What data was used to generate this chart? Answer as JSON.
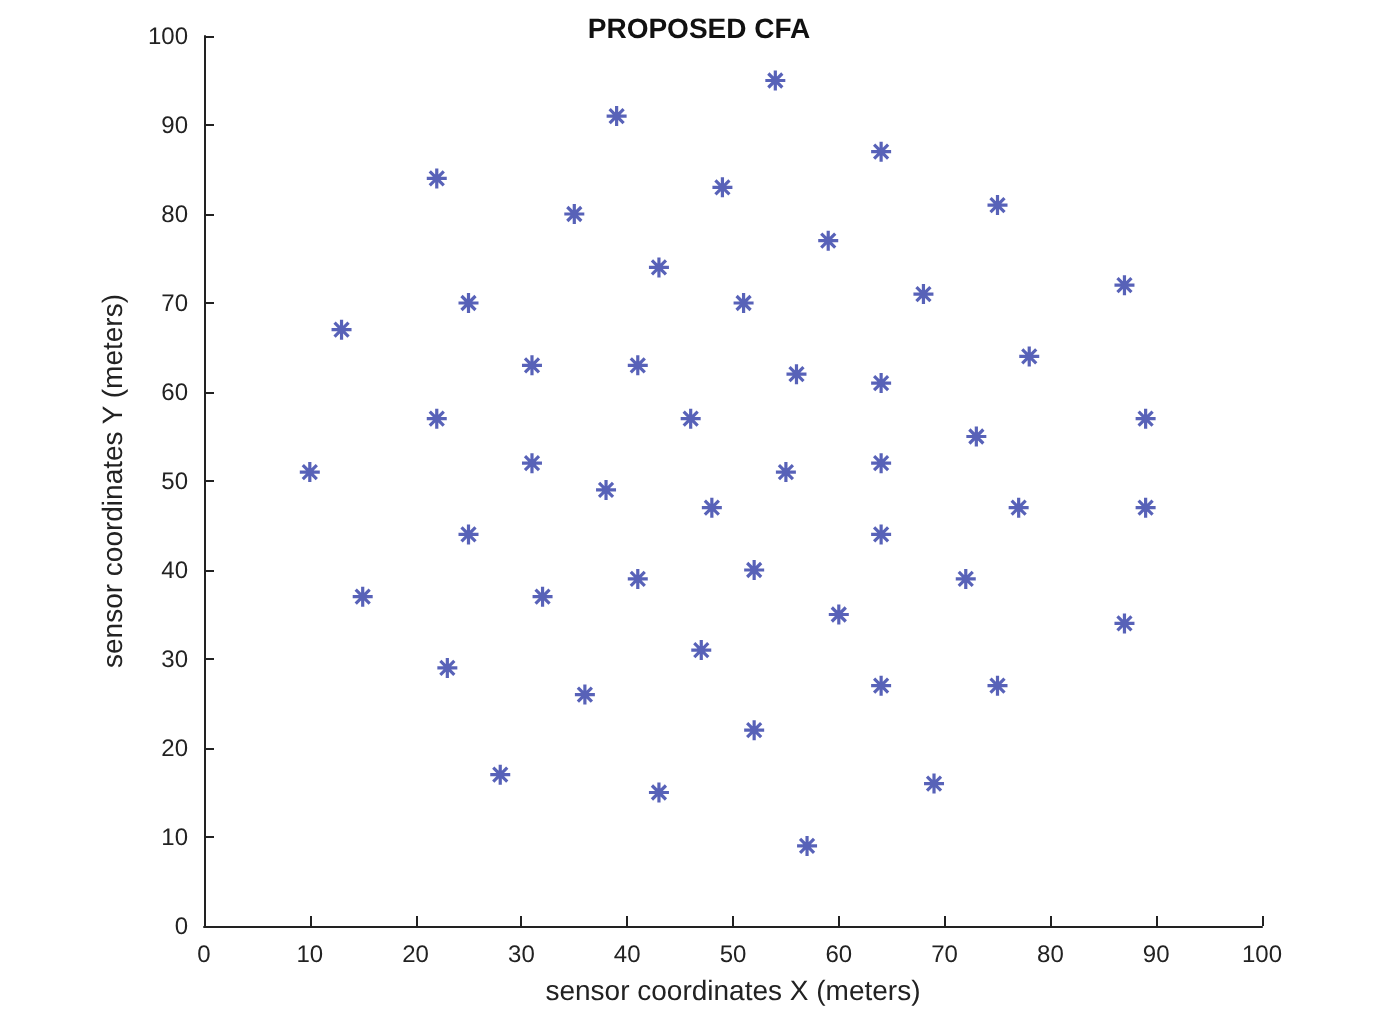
{
  "chart_data": {
    "type": "scatter",
    "title": "PROPOSED CFA",
    "xlabel": "sensor coordinates X (meters)",
    "ylabel": "sensor coordinates Y (meters)",
    "x": [
      22,
      39,
      54,
      64,
      75,
      35,
      49,
      59,
      43,
      25,
      68,
      51,
      87,
      13,
      31,
      41,
      56,
      64,
      78,
      22,
      46,
      89,
      31,
      73,
      64,
      10,
      38,
      55,
      48,
      77,
      89,
      25,
      64,
      15,
      32,
      41,
      52,
      72,
      60,
      87,
      23,
      47,
      36,
      64,
      75,
      52,
      28,
      43,
      69,
      57
    ],
    "values": [
      84,
      91,
      95,
      87,
      81,
      80,
      83,
      77,
      74,
      70,
      71,
      70,
      72,
      67,
      63,
      63,
      62,
      61,
      64,
      57,
      57,
      57,
      52,
      55,
      52,
      51,
      49,
      51,
      47,
      47,
      47,
      44,
      44,
      37,
      37,
      39,
      40,
      39,
      35,
      34,
      29,
      31,
      26,
      27,
      27,
      22,
      17,
      15,
      16,
      9
    ],
    "color": "#2e3ba6",
    "marker": "cross",
    "grid": false,
    "xlim": [
      0,
      100
    ],
    "xticks": [
      0,
      10,
      20,
      30,
      40,
      50,
      60,
      70,
      80,
      90,
      100
    ],
    "ylim": [
      0,
      100
    ],
    "yticks": [
      0,
      10,
      20,
      30,
      40,
      50,
      60,
      70,
      80,
      90,
      100
    ]
  }
}
